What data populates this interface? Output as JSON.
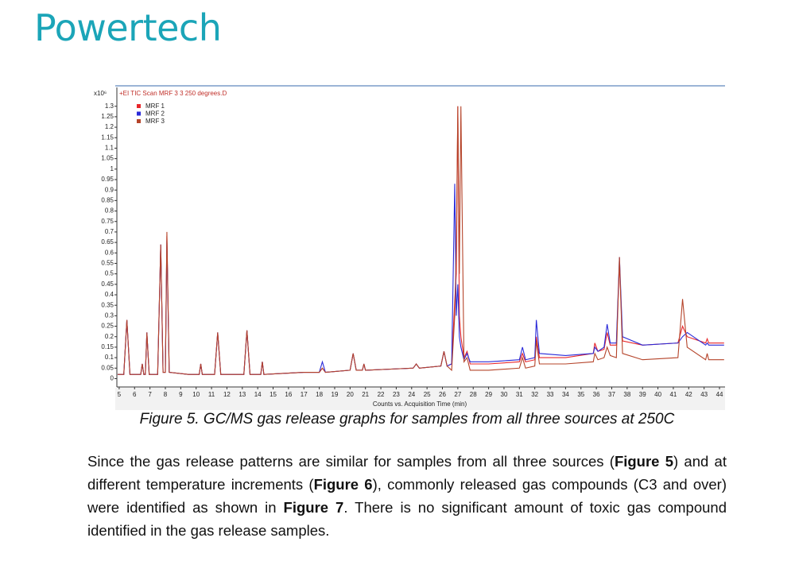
{
  "header": {
    "logo": "Powertech"
  },
  "chart_data": {
    "type": "line",
    "title": "+EI TIC Scan MRF 3 3 250 degrees.D",
    "y_unit": "x10⁶",
    "x_label": "Counts vs. Acquisition Time (min)",
    "x": [
      4.9,
      5.3,
      5.5,
      5.7,
      6.4,
      6.5,
      6.6,
      6.7,
      6.8,
      6.95,
      7.5,
      7.7,
      7.85,
      8.0,
      8.1,
      8.25,
      9.5,
      10.2,
      10.3,
      10.4,
      11.2,
      11.4,
      11.6,
      13.1,
      13.3,
      13.5,
      14.2,
      14.3,
      14.4,
      17,
      18,
      18.2,
      18.4,
      20,
      20.2,
      20.4,
      20.8,
      20.9,
      21,
      24.1,
      24.3,
      24.5,
      25.9,
      26.1,
      26.3,
      26.6,
      26.8,
      26.9,
      27.0,
      27.1,
      27.2,
      27.4,
      27.6,
      27.8,
      29,
      31,
      31.2,
      31.4,
      32,
      32.1,
      32.3,
      34,
      35.8,
      35.9,
      36.1,
      36.5,
      36.7,
      36.9,
      37.3,
      37.5,
      37.7,
      39,
      41.3,
      41.6,
      41.9,
      43.1,
      43.2,
      43.3,
      44.3
    ],
    "series": [
      {
        "name": "MRF 1",
        "color": "#e8262a",
        "values": [
          0.02,
          0.02,
          0.28,
          0.02,
          0.02,
          0.07,
          0.02,
          0.02,
          0.22,
          0.02,
          0.02,
          0.64,
          0.03,
          0.03,
          0.68,
          0.03,
          0.02,
          0.02,
          0.07,
          0.02,
          0.02,
          0.22,
          0.02,
          0.02,
          0.23,
          0.02,
          0.02,
          0.08,
          0.02,
          0.03,
          0.03,
          0.05,
          0.03,
          0.04,
          0.12,
          0.04,
          0.04,
          0.07,
          0.04,
          0.05,
          0.07,
          0.05,
          0.06,
          0.13,
          0.06,
          0.07,
          0.37,
          0.5,
          1.3,
          0.3,
          0.2,
          0.1,
          0.13,
          0.07,
          0.07,
          0.08,
          0.12,
          0.08,
          0.09,
          0.2,
          0.1,
          0.1,
          0.12,
          0.17,
          0.13,
          0.14,
          0.22,
          0.16,
          0.16,
          0.55,
          0.18,
          0.16,
          0.17,
          0.25,
          0.2,
          0.17,
          0.19,
          0.17,
          0.17
        ]
      },
      {
        "name": "MRF 2",
        "color": "#2a2ad8",
        "values": [
          0.02,
          0.02,
          0.28,
          0.02,
          0.02,
          0.07,
          0.02,
          0.02,
          0.22,
          0.02,
          0.02,
          0.64,
          0.03,
          0.03,
          0.66,
          0.03,
          0.02,
          0.02,
          0.07,
          0.02,
          0.02,
          0.22,
          0.02,
          0.02,
          0.23,
          0.02,
          0.02,
          0.08,
          0.02,
          0.03,
          0.03,
          0.08,
          0.03,
          0.04,
          0.12,
          0.04,
          0.04,
          0.07,
          0.04,
          0.05,
          0.07,
          0.05,
          0.06,
          0.13,
          0.06,
          0.07,
          0.93,
          0.3,
          0.45,
          0.2,
          0.15,
          0.09,
          0.12,
          0.08,
          0.08,
          0.09,
          0.15,
          0.09,
          0.1,
          0.28,
          0.12,
          0.11,
          0.12,
          0.15,
          0.13,
          0.15,
          0.26,
          0.17,
          0.17,
          0.58,
          0.2,
          0.16,
          0.17,
          0.2,
          0.22,
          0.16,
          0.17,
          0.16,
          0.16
        ]
      },
      {
        "name": "MRF 3",
        "color": "#b5442a",
        "values": [
          0.02,
          0.02,
          0.28,
          0.02,
          0.02,
          0.07,
          0.02,
          0.02,
          0.22,
          0.02,
          0.02,
          0.64,
          0.03,
          0.03,
          0.7,
          0.03,
          0.02,
          0.02,
          0.07,
          0.02,
          0.02,
          0.22,
          0.02,
          0.02,
          0.23,
          0.02,
          0.02,
          0.08,
          0.02,
          0.03,
          0.03,
          0.05,
          0.03,
          0.04,
          0.12,
          0.04,
          0.04,
          0.07,
          0.04,
          0.05,
          0.07,
          0.05,
          0.06,
          0.13,
          0.06,
          0.04,
          0.3,
          0.6,
          1.3,
          0.5,
          1.3,
          0.08,
          0.1,
          0.04,
          0.04,
          0.05,
          0.1,
          0.05,
          0.06,
          0.18,
          0.07,
          0.07,
          0.08,
          0.12,
          0.09,
          0.1,
          0.15,
          0.11,
          0.1,
          0.58,
          0.12,
          0.09,
          0.1,
          0.38,
          0.15,
          0.09,
          0.12,
          0.09,
          0.09
        ]
      }
    ],
    "xlim": [
      4.85,
      44.36
    ],
    "ylim": [
      -0.04,
      1.39
    ],
    "xticks": [
      5,
      6,
      7,
      8,
      9,
      10,
      11,
      12,
      13,
      14,
      15,
      16,
      17,
      18,
      19,
      20,
      21,
      22,
      23,
      24,
      25,
      26,
      27,
      28,
      29,
      30,
      31,
      32,
      33,
      34,
      35,
      36,
      37,
      38,
      39,
      40,
      41,
      42,
      43,
      44
    ],
    "yticks": [
      0,
      0.05,
      0.1,
      0.15,
      0.2,
      0.25,
      0.3,
      0.35,
      0.4,
      0.45,
      0.5,
      0.55,
      0.6,
      0.65,
      0.7,
      0.75,
      0.8,
      0.85,
      0.9,
      0.95,
      1,
      1.05,
      1.1,
      1.15,
      1.2,
      1.25,
      1.3
    ]
  },
  "caption": "Figure 5. GC/MS gas release graphs for samples from all three sources at 250C",
  "paragraph": [
    "Since the gas release patterns are similar for samples from all three sources (",
    "Figure 5",
    ") and at different temperature increments (",
    "Figure 6",
    "), commonly released gas compounds (C3 and over) were identified as shown in ",
    "Figure 7",
    ". There is no significant amount of toxic gas compound identified in the gas release samples."
  ]
}
